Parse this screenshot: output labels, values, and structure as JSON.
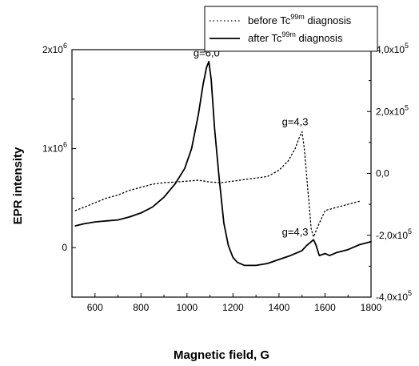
{
  "chart_data": {
    "type": "line",
    "xlabel": "Magnetic field, G",
    "ylabel": "EPR intensity",
    "xlim": [
      500,
      1800
    ],
    "ylim_left": [
      -500000,
      2000000
    ],
    "ylim_right": [
      -400000,
      400000
    ],
    "x_ticks": [
      600,
      800,
      1000,
      1200,
      1400,
      1600,
      1800
    ],
    "x_tick_labels": [
      "600",
      "800",
      "1000",
      "1200",
      "1400",
      "1600",
      "1800"
    ],
    "y_left_ticks": [
      {
        "value": 0,
        "base": "0",
        "exp": ""
      },
      {
        "value": 1000000,
        "base": "1x10",
        "exp": "6"
      },
      {
        "value": 2000000,
        "base": "2x10",
        "exp": "6"
      }
    ],
    "y_right_ticks": [
      {
        "value": 400000,
        "base": "4,0x10",
        "exp": "5"
      },
      {
        "value": 200000,
        "base": "2,0x10",
        "exp": "5"
      },
      {
        "value": 0,
        "base": "0,0",
        "exp": ""
      },
      {
        "value": -200000,
        "base": "-2,0x10",
        "exp": "5"
      },
      {
        "value": -400000,
        "base": "-4,0x10",
        "exp": "5"
      }
    ],
    "legend": {
      "placement": "top-right",
      "entries": [
        {
          "label_pre": "before Tc",
          "label_sup": "99m",
          "label_post": " diagnosis",
          "style": "dotted"
        },
        {
          "label_pre": "after Tc",
          "label_sup": "99m",
          "label_post": " diagnosis",
          "style": "solid"
        }
      ]
    },
    "series": [
      {
        "axis": "right",
        "style": "dotted",
        "x": [
          515,
          550,
          600,
          650,
          700,
          750,
          800,
          850,
          900,
          950,
          1000,
          1050,
          1100,
          1150,
          1200,
          1250,
          1300,
          1350,
          1400,
          1440,
          1470,
          1490,
          1500,
          1510,
          1525,
          1540,
          1550,
          1570,
          1600,
          1650,
          1700,
          1750
        ],
        "y": [
          -120000,
          -110000,
          -95000,
          -80000,
          -70000,
          -55000,
          -45000,
          -35000,
          -30000,
          -28000,
          -25000,
          -22000,
          -28000,
          -30000,
          -25000,
          -20000,
          -15000,
          -10000,
          10000,
          40000,
          80000,
          120000,
          135000,
          80000,
          -50000,
          -180000,
          -205000,
          -170000,
          -120000,
          -110000,
          -100000,
          -90000
        ]
      },
      {
        "axis": "left",
        "style": "solid",
        "x": [
          515,
          550,
          600,
          650,
          700,
          750,
          800,
          850,
          900,
          950,
          990,
          1020,
          1050,
          1070,
          1085,
          1095,
          1105,
          1120,
          1140,
          1160,
          1180,
          1200,
          1220,
          1250,
          1300,
          1350,
          1400,
          1450,
          1500,
          1520,
          1540,
          1550,
          1560,
          1575,
          1600,
          1620,
          1650,
          1700,
          1750,
          1800
        ],
        "y": [
          220000,
          240000,
          260000,
          270000,
          280000,
          310000,
          350000,
          410000,
          510000,
          650000,
          800000,
          1000000,
          1350000,
          1650000,
          1820000,
          1880000,
          1700000,
          1200000,
          700000,
          250000,
          20000,
          -100000,
          -150000,
          -180000,
          -180000,
          -160000,
          -120000,
          -80000,
          -30000,
          20000,
          60000,
          80000,
          30000,
          -80000,
          -60000,
          -80000,
          -50000,
          -20000,
          30000,
          60000
        ]
      }
    ],
    "annotations": [
      {
        "text": "g=6,0",
        "x": 1085,
        "y": 1900000,
        "axis": "left"
      },
      {
        "text": "g=4,3",
        "x": 1470,
        "y": 145000,
        "axis": "right"
      },
      {
        "text": "g=4,3",
        "x": 1470,
        "y": 90000,
        "axis": "left"
      }
    ]
  }
}
